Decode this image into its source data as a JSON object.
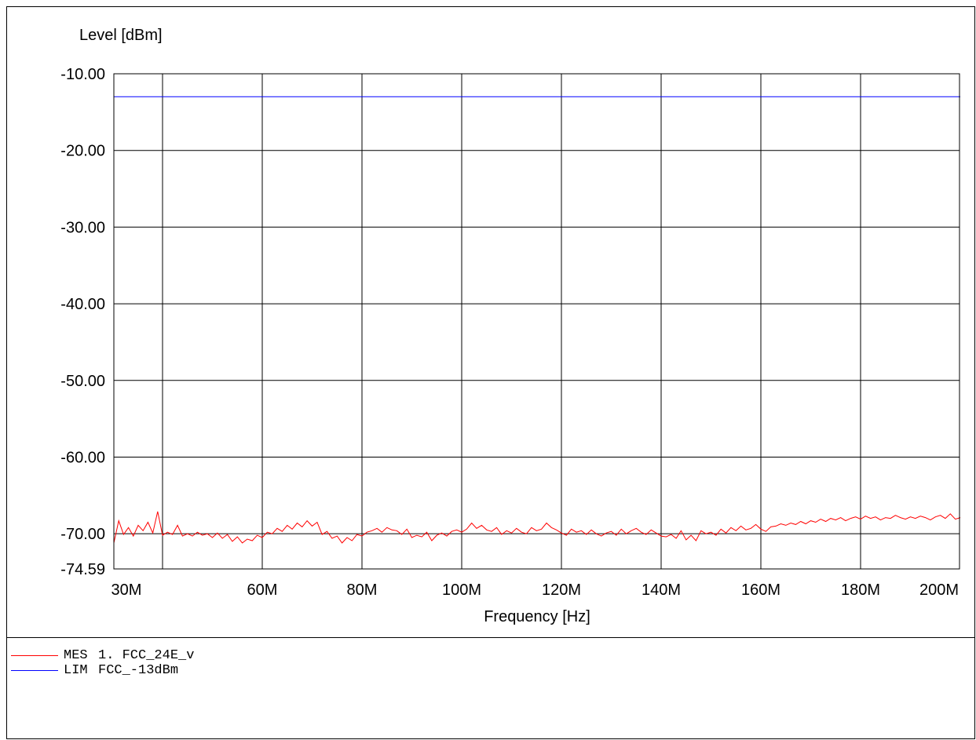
{
  "chart_data": {
    "type": "line",
    "ylabel": "Level [dBm]",
    "xlabel": "Frequency [Hz]",
    "ylim": [
      -74.59,
      -10.0
    ],
    "yticks": [
      {
        "value": -10.0,
        "label": "-10.00"
      },
      {
        "value": -20.0,
        "label": "-20.00"
      },
      {
        "value": -30.0,
        "label": "-30.00"
      },
      {
        "value": -40.0,
        "label": "-40.00"
      },
      {
        "value": -50.0,
        "label": "-50.00"
      },
      {
        "value": -60.0,
        "label": "-60.00"
      },
      {
        "value": -70.0,
        "label": "-70.00"
      },
      {
        "value": -74.59,
        "label": "-74.59"
      }
    ],
    "xlim": [
      30000000,
      200000000
    ],
    "xticks": [
      {
        "value": 30000000,
        "label": "30M"
      },
      {
        "value": 60000000,
        "label": "60M"
      },
      {
        "value": 80000000,
        "label": "80M"
      },
      {
        "value": 100000000,
        "label": "100M"
      },
      {
        "value": 120000000,
        "label": "120M"
      },
      {
        "value": 140000000,
        "label": "140M"
      },
      {
        "value": 160000000,
        "label": "160M"
      },
      {
        "value": 180000000,
        "label": "180M"
      },
      {
        "value": 200000000,
        "label": "200M"
      }
    ],
    "grid": true,
    "series": [
      {
        "name": "MES 1. FCC_24E_v",
        "color": "#ff0000",
        "points": [
          [
            30000000,
            -71.2
          ],
          [
            31000000,
            -68.3
          ],
          [
            32000000,
            -70.1
          ],
          [
            33000000,
            -69.2
          ],
          [
            34000000,
            -70.3
          ],
          [
            35000000,
            -68.9
          ],
          [
            36000000,
            -69.6
          ],
          [
            37000000,
            -68.5
          ],
          [
            38000000,
            -69.9
          ],
          [
            39000000,
            -67.1
          ],
          [
            40000000,
            -70.2
          ],
          [
            41000000,
            -69.8
          ],
          [
            42000000,
            -70.1
          ],
          [
            43000000,
            -68.9
          ],
          [
            44000000,
            -70.3
          ],
          [
            45000000,
            -70.0
          ],
          [
            46000000,
            -70.3
          ],
          [
            47000000,
            -69.8
          ],
          [
            48000000,
            -70.2
          ],
          [
            49000000,
            -70.0
          ],
          [
            50000000,
            -70.5
          ],
          [
            51000000,
            -69.9
          ],
          [
            52000000,
            -70.6
          ],
          [
            53000000,
            -70.1
          ],
          [
            54000000,
            -71.0
          ],
          [
            55000000,
            -70.4
          ],
          [
            56000000,
            -71.2
          ],
          [
            57000000,
            -70.7
          ],
          [
            58000000,
            -70.9
          ],
          [
            59000000,
            -70.2
          ],
          [
            60000000,
            -70.5
          ],
          [
            61000000,
            -69.8
          ],
          [
            62000000,
            -70.0
          ],
          [
            63000000,
            -69.3
          ],
          [
            64000000,
            -69.7
          ],
          [
            65000000,
            -68.9
          ],
          [
            66000000,
            -69.4
          ],
          [
            67000000,
            -68.6
          ],
          [
            68000000,
            -69.1
          ],
          [
            69000000,
            -68.3
          ],
          [
            70000000,
            -69.0
          ],
          [
            71000000,
            -68.5
          ],
          [
            72000000,
            -70.1
          ],
          [
            73000000,
            -69.7
          ],
          [
            74000000,
            -70.6
          ],
          [
            75000000,
            -70.3
          ],
          [
            76000000,
            -71.2
          ],
          [
            77000000,
            -70.5
          ],
          [
            78000000,
            -70.9
          ],
          [
            79000000,
            -70.1
          ],
          [
            80000000,
            -70.3
          ],
          [
            81000000,
            -69.8
          ],
          [
            82000000,
            -69.6
          ],
          [
            83000000,
            -69.3
          ],
          [
            84000000,
            -69.8
          ],
          [
            85000000,
            -69.2
          ],
          [
            86000000,
            -69.5
          ],
          [
            87000000,
            -69.6
          ],
          [
            88000000,
            -70.1
          ],
          [
            89000000,
            -69.4
          ],
          [
            90000000,
            -70.5
          ],
          [
            91000000,
            -70.2
          ],
          [
            92000000,
            -70.4
          ],
          [
            93000000,
            -69.8
          ],
          [
            94000000,
            -70.9
          ],
          [
            95000000,
            -70.2
          ],
          [
            96000000,
            -69.9
          ],
          [
            97000000,
            -70.3
          ],
          [
            98000000,
            -69.7
          ],
          [
            99000000,
            -69.5
          ],
          [
            100000000,
            -69.8
          ],
          [
            101000000,
            -69.4
          ],
          [
            102000000,
            -68.6
          ],
          [
            103000000,
            -69.3
          ],
          [
            104000000,
            -68.9
          ],
          [
            105000000,
            -69.5
          ],
          [
            106000000,
            -69.7
          ],
          [
            107000000,
            -69.2
          ],
          [
            108000000,
            -70.1
          ],
          [
            109000000,
            -69.6
          ],
          [
            110000000,
            -69.9
          ],
          [
            111000000,
            -69.3
          ],
          [
            112000000,
            -69.8
          ],
          [
            113000000,
            -70.0
          ],
          [
            114000000,
            -69.2
          ],
          [
            115000000,
            -69.6
          ],
          [
            116000000,
            -69.4
          ],
          [
            117000000,
            -68.6
          ],
          [
            118000000,
            -69.2
          ],
          [
            119000000,
            -69.5
          ],
          [
            120000000,
            -69.9
          ],
          [
            121000000,
            -70.2
          ],
          [
            122000000,
            -69.4
          ],
          [
            123000000,
            -69.8
          ],
          [
            124000000,
            -69.6
          ],
          [
            125000000,
            -70.1
          ],
          [
            126000000,
            -69.5
          ],
          [
            127000000,
            -70.0
          ],
          [
            128000000,
            -70.3
          ],
          [
            129000000,
            -69.9
          ],
          [
            130000000,
            -69.7
          ],
          [
            131000000,
            -70.2
          ],
          [
            132000000,
            -69.4
          ],
          [
            133000000,
            -70.0
          ],
          [
            134000000,
            -69.6
          ],
          [
            135000000,
            -69.3
          ],
          [
            136000000,
            -69.8
          ],
          [
            137000000,
            -70.1
          ],
          [
            138000000,
            -69.5
          ],
          [
            139000000,
            -69.9
          ],
          [
            140000000,
            -70.3
          ],
          [
            141000000,
            -70.4
          ],
          [
            142000000,
            -70.1
          ],
          [
            143000000,
            -70.6
          ],
          [
            144000000,
            -69.6
          ],
          [
            145000000,
            -70.8
          ],
          [
            146000000,
            -70.2
          ],
          [
            147000000,
            -70.9
          ],
          [
            148000000,
            -69.6
          ],
          [
            149000000,
            -70.0
          ],
          [
            150000000,
            -69.8
          ],
          [
            151000000,
            -70.2
          ],
          [
            152000000,
            -69.4
          ],
          [
            153000000,
            -69.9
          ],
          [
            154000000,
            -69.2
          ],
          [
            155000000,
            -69.6
          ],
          [
            156000000,
            -69.0
          ],
          [
            157000000,
            -69.5
          ],
          [
            158000000,
            -69.3
          ],
          [
            159000000,
            -68.8
          ],
          [
            160000000,
            -69.4
          ],
          [
            161000000,
            -69.7
          ],
          [
            162000000,
            -69.1
          ],
          [
            163000000,
            -69.0
          ],
          [
            164000000,
            -68.7
          ],
          [
            165000000,
            -68.9
          ],
          [
            166000000,
            -68.6
          ],
          [
            167000000,
            -68.8
          ],
          [
            168000000,
            -68.4
          ],
          [
            169000000,
            -68.7
          ],
          [
            170000000,
            -68.3
          ],
          [
            171000000,
            -68.5
          ],
          [
            172000000,
            -68.1
          ],
          [
            173000000,
            -68.4
          ],
          [
            174000000,
            -68.0
          ],
          [
            175000000,
            -68.2
          ],
          [
            176000000,
            -67.9
          ],
          [
            177000000,
            -68.3
          ],
          [
            178000000,
            -68.0
          ],
          [
            179000000,
            -67.8
          ],
          [
            180000000,
            -68.1
          ],
          [
            181000000,
            -67.7
          ],
          [
            182000000,
            -68.0
          ],
          [
            183000000,
            -67.8
          ],
          [
            184000000,
            -68.2
          ],
          [
            185000000,
            -67.9
          ],
          [
            186000000,
            -68.0
          ],
          [
            187000000,
            -67.6
          ],
          [
            188000000,
            -67.9
          ],
          [
            189000000,
            -68.1
          ],
          [
            190000000,
            -67.8
          ],
          [
            191000000,
            -68.0
          ],
          [
            192000000,
            -67.7
          ],
          [
            193000000,
            -67.9
          ],
          [
            194000000,
            -68.2
          ],
          [
            195000000,
            -67.8
          ],
          [
            196000000,
            -67.6
          ],
          [
            197000000,
            -68.0
          ],
          [
            198000000,
            -67.4
          ],
          [
            199000000,
            -68.1
          ],
          [
            200000000,
            -67.9
          ]
        ]
      },
      {
        "name": "LIM FCC_-13dBm",
        "color": "#0000ff",
        "points": [
          [
            30000000,
            -13.0
          ],
          [
            200000000,
            -13.0
          ]
        ]
      }
    ]
  },
  "legend": {
    "items": [
      {
        "tag": "MES",
        "name": "1. FCC_24E_v",
        "color": "#ff0000"
      },
      {
        "tag": "LIM",
        "name": "FCC_-13dBm",
        "color": "#0000ff"
      }
    ]
  }
}
